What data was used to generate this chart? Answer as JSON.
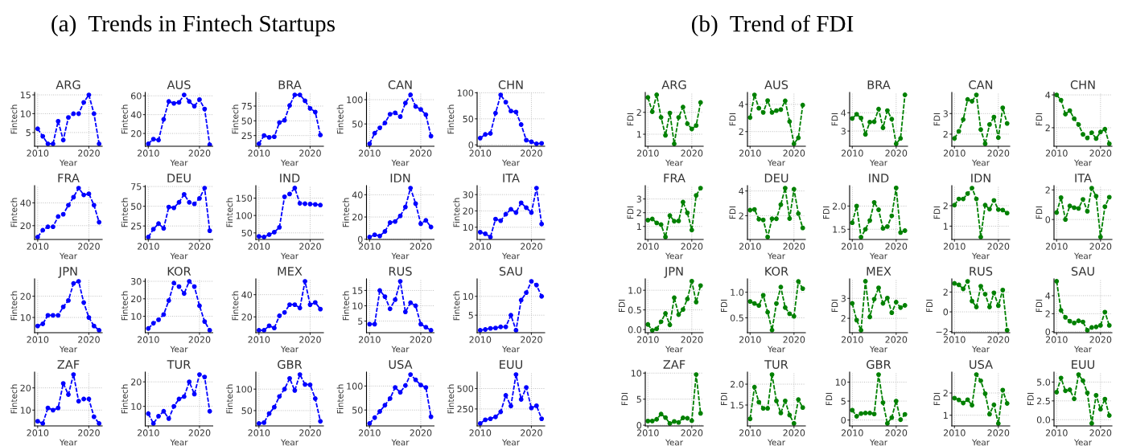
{
  "chart_data": [
    {
      "type": "line",
      "title": "ARG",
      "xlabel": "Year",
      "ylabel": "Fintech",
      "x": [
        2010,
        2011,
        2012,
        2013,
        2014,
        2015,
        2016,
        2017,
        2018,
        2019,
        2020,
        2021,
        2022
      ],
      "series": [
        {
          "color": "#0000ff",
          "values": [
            6,
            4,
            2,
            2,
            8,
            3,
            9,
            10,
            10,
            13,
            15,
            10,
            2
          ]
        }
      ],
      "xlim": [
        2009.4,
        2022.6
      ],
      "xticks": [
        2010,
        2020
      ],
      "ylim": [
        1.35,
        15.65
      ],
      "yticks": [
        5,
        10,
        15
      ],
      "grid": true,
      "marker": "circle",
      "line_style": "dashed"
    },
    {
      "type": "line",
      "subtitle": "(a)  Trends in Fintech Startups",
      "title": "AUS",
      "xlabel": "Year",
      "ylabel": "Fintech",
      "x": [
        2010,
        2011,
        2012,
        2013,
        2014,
        2015,
        2016,
        2017,
        2018,
        2019,
        2020,
        2021,
        2022
      ],
      "series": [
        {
          "color": "#0000ff",
          "values": [
            9,
            14,
            13,
            35,
            54,
            52,
            53,
            61,
            54,
            49,
            56,
            46,
            8
          ]
        }
      ],
      "xlim": [
        2009.4,
        2022.6
      ],
      "xticks": [
        2010,
        2020
      ],
      "ylim": [
        6.4,
        63.6
      ],
      "yticks": [
        20,
        40,
        60
      ],
      "grid": true,
      "marker": "circle",
      "line_style": "dashed"
    },
    {
      "type": "line",
      "title": "BRA",
      "xlabel": "Year",
      "ylabel": "Fintech",
      "x": [
        2010,
        2011,
        2012,
        2013,
        2014,
        2015,
        2016,
        2017,
        2018,
        2019,
        2020,
        2021,
        2022
      ],
      "series": [
        {
          "color": "#0000ff",
          "values": [
            11,
            25,
            22,
            23,
            47,
            51,
            76,
            94,
            94,
            84,
            71,
            65,
            26
          ]
        }
      ],
      "xlim": [
        2009.4,
        2022.6
      ],
      "xticks": [
        2010,
        2020
      ],
      "ylim": [
        6.85,
        98.15
      ],
      "yticks": [
        25,
        50,
        75
      ],
      "grid": true,
      "marker": "circle",
      "line_style": "dashed"
    },
    {
      "type": "line",
      "title": "CAN",
      "xlabel": "Year",
      "ylabel": "Fintech",
      "x": [
        2010,
        2011,
        2012,
        2013,
        2014,
        2015,
        2016,
        2017,
        2018,
        2019,
        2020,
        2021,
        2022
      ],
      "series": [
        {
          "color": "#0000ff",
          "values": [
            9,
            31,
            42,
            52,
            70,
            73,
            65,
            93,
            110,
            86,
            80,
            69,
            25
          ]
        }
      ],
      "xlim": [
        2009.4,
        2022.6
      ],
      "xticks": [
        2010,
        2020
      ],
      "ylim": [
        4,
        115
      ],
      "yticks": [
        50,
        100
      ],
      "grid": true,
      "marker": "circle",
      "line_style": "dashed"
    },
    {
      "type": "line",
      "title": "CHN",
      "xlabel": "Year",
      "ylabel": "Fintech",
      "x": [
        2010,
        2011,
        2012,
        2013,
        2014,
        2015,
        2016,
        2017,
        2018,
        2019,
        2020,
        2021,
        2022
      ],
      "series": [
        {
          "color": "#0000ff",
          "values": [
            13,
            20,
            22,
            61,
            96,
            82,
            65,
            63,
            39,
            9,
            6,
            2,
            3
          ]
        }
      ],
      "xlim": [
        2009.4,
        2022.6
      ],
      "xticks": [
        2010,
        2020
      ],
      "ylim": [
        -2.7,
        100.7
      ],
      "yticks": [
        0,
        50,
        100
      ],
      "grid": true,
      "marker": "circle",
      "line_style": "dashed"
    },
    {
      "type": "line",
      "title": "FRA",
      "xlabel": "Year",
      "ylabel": "Fintech",
      "x": [
        2010,
        2011,
        2012,
        2013,
        2014,
        2015,
        2016,
        2017,
        2018,
        2019,
        2020,
        2021,
        2022
      ],
      "series": [
        {
          "color": "#0000ff",
          "values": [
            10,
            16,
            19,
            19,
            28,
            30,
            38,
            45,
            53,
            47,
            48,
            38,
            23
          ]
        }
      ],
      "xlim": [
        2009.4,
        2022.6
      ],
      "xticks": [
        2010,
        2020
      ],
      "ylim": [
        7.85,
        55.15
      ],
      "yticks": [
        20,
        40
      ],
      "grid": true,
      "marker": "circle",
      "line_style": "dashed"
    },
    {
      "type": "line",
      "title": "DEU",
      "xlabel": "Year",
      "ylabel": "Fintech",
      "x": [
        2010,
        2011,
        2012,
        2013,
        2014,
        2015,
        2016,
        2017,
        2018,
        2019,
        2020,
        2021,
        2022
      ],
      "series": [
        {
          "color": "#0000ff",
          "values": [
            11,
            21,
            28,
            22,
            49,
            48,
            55,
            65,
            55,
            53,
            60,
            73,
            19
          ]
        }
      ],
      "xlim": [
        2009.4,
        2022.6
      ],
      "xticks": [
        2010,
        2020
      ],
      "ylim": [
        7.9,
        76.1
      ],
      "yticks": [
        25,
        50,
        75
      ],
      "grid": true,
      "marker": "circle",
      "line_style": "dashed"
    },
    {
      "type": "line",
      "title": "IND",
      "xlabel": "Year",
      "ylabel": "Fintech",
      "x": [
        2010,
        2011,
        2012,
        2013,
        2014,
        2015,
        2016,
        2017,
        2018,
        2019,
        2020,
        2021,
        2022
      ],
      "series": [
        {
          "color": "#0000ff",
          "values": [
            40,
            38,
            45,
            52,
            66,
            154,
            162,
            179,
            135,
            134,
            133,
            132,
            130
          ]
        }
      ],
      "xlim": [
        2009.4,
        2022.6
      ],
      "xticks": [
        2010,
        2020
      ],
      "ylim": [
        31,
        186
      ],
      "yticks": [
        50,
        100,
        150
      ],
      "grid": true,
      "marker": "circle",
      "line_style": "dashed"
    },
    {
      "type": "line",
      "title": "IDN",
      "xlabel": "Year",
      "ylabel": "Fintech",
      "x": [
        2010,
        2011,
        2012,
        2013,
        2014,
        2015,
        2016,
        2017,
        2018,
        2019,
        2020,
        2021,
        2022
      ],
      "series": [
        {
          "color": "#0000ff",
          "values": [
            2,
            4,
            3,
            7,
            15,
            16,
            21,
            29,
            46,
            32,
            14,
            17,
            11
          ]
        }
      ],
      "xlim": [
        2009.4,
        2022.6
      ],
      "xticks": [
        2010,
        2020
      ],
      "ylim": [
        -0.2,
        48.2
      ],
      "yticks": [
        0,
        20,
        40
      ],
      "grid": true,
      "marker": "circle",
      "line_style": "dashed"
    },
    {
      "type": "line",
      "title": "ITA",
      "xlabel": "Year",
      "ylabel": "Fintech",
      "x": [
        2010,
        2011,
        2012,
        2013,
        2014,
        2015,
        2016,
        2017,
        2018,
        2019,
        2020,
        2021,
        2022
      ],
      "series": [
        {
          "color": "#0000ff",
          "values": [
            7,
            6,
            4,
            15,
            14,
            18,
            21,
            19,
            25,
            22,
            19,
            34,
            12
          ]
        }
      ],
      "xlim": [
        2009.4,
        2022.6
      ],
      "xticks": [
        2010,
        2020
      ],
      "ylim": [
        2.5,
        35.5
      ],
      "yticks": [
        10,
        20,
        30
      ],
      "grid": true,
      "marker": "circle",
      "line_style": "dashed"
    },
    {
      "type": "line",
      "title": "JPN",
      "xlabel": "Year",
      "ylabel": "Fintech",
      "x": [
        2010,
        2011,
        2012,
        2013,
        2014,
        2015,
        2016,
        2017,
        2018,
        2019,
        2020,
        2021,
        2022
      ],
      "series": [
        {
          "color": "#0000ff",
          "values": [
            6,
            7,
            11,
            11,
            11,
            15,
            18,
            26,
            27,
            17,
            10,
            6,
            4
          ]
        }
      ],
      "xlim": [
        2009.4,
        2022.6
      ],
      "xticks": [
        2010,
        2020
      ],
      "ylim": [
        2.85,
        28.15
      ],
      "yticks": [
        10,
        20
      ],
      "grid": true,
      "marker": "circle",
      "line_style": "dashed"
    },
    {
      "type": "line",
      "title": "KOR",
      "xlabel": "Year",
      "ylabel": "Fintech",
      "x": [
        2010,
        2011,
        2012,
        2013,
        2014,
        2015,
        2016,
        2017,
        2018,
        2019,
        2020,
        2021,
        2022
      ],
      "series": [
        {
          "color": "#0000ff",
          "values": [
            3,
            6,
            8,
            11,
            19,
            29,
            27,
            23,
            30,
            27,
            16,
            7,
            2
          ]
        }
      ],
      "xlim": [
        2009.4,
        2022.6
      ],
      "xticks": [
        2010,
        2020
      ],
      "ylim": [
        0.6,
        31.4
      ],
      "yticks": [
        10,
        20,
        30
      ],
      "grid": true,
      "marker": "circle",
      "line_style": "dashed"
    },
    {
      "type": "line",
      "title": "MEX",
      "xlabel": "Year",
      "ylabel": "Fintech",
      "x": [
        2010,
        2011,
        2012,
        2013,
        2014,
        2015,
        2016,
        2017,
        2018,
        2019,
        2020,
        2021,
        2022
      ],
      "series": [
        {
          "color": "#0000ff",
          "values": [
            8,
            8,
            12,
            10,
            21,
            24,
            31,
            31,
            28,
            52,
            31,
            33,
            27
          ]
        }
      ],
      "xlim": [
        2009.4,
        2022.6
      ],
      "xticks": [
        2010,
        2020
      ],
      "ylim": [
        5.8,
        54.2
      ],
      "yticks": [
        20,
        40
      ],
      "grid": true,
      "marker": "circle",
      "line_style": "dashed"
    },
    {
      "type": "line",
      "title": "RUS",
      "xlabel": "Year",
      "ylabel": "Fintech",
      "x": [
        2010,
        2011,
        2012,
        2013,
        2014,
        2015,
        2016,
        2017,
        2018,
        2019,
        2020,
        2021,
        2022
      ],
      "series": [
        {
          "color": "#0000ff",
          "values": [
            4,
            4,
            15,
            13,
            9,
            12,
            18,
            8,
            11,
            10,
            4,
            3,
            2
          ]
        }
      ],
      "xlim": [
        2009.4,
        2022.6
      ],
      "xticks": [
        2010,
        2020
      ],
      "ylim": [
        1.2,
        18.8
      ],
      "yticks": [
        5,
        10,
        15
      ],
      "grid": true,
      "marker": "circle",
      "line_style": "dashed"
    },
    {
      "type": "line",
      "title": "SAU",
      "xlabel": "Year",
      "ylabel": "Fintech",
      "x": [
        2010,
        2011,
        2012,
        2013,
        2014,
        2015,
        2016,
        2017,
        2018,
        2019,
        2020,
        2021,
        2022
      ],
      "series": [
        {
          "color": "#0000ff",
          "values": [
            1,
            1.2,
            1.5,
            1.6,
            1.9,
            1.9,
            5,
            1,
            9,
            11,
            14,
            13,
            10
          ]
        }
      ],
      "xlim": [
        2009.4,
        2022.6
      ],
      "xticks": [
        2010,
        2020
      ],
      "ylim": [
        0.35,
        14.65
      ],
      "yticks": [
        5,
        10
      ],
      "grid": true,
      "marker": "circle",
      "line_style": "dashed"
    },
    {
      "type": "line",
      "title": "ZAF",
      "xlabel": "Year",
      "ylabel": "Fintech",
      "x": [
        2010,
        2011,
        2012,
        2013,
        2014,
        2015,
        2016,
        2017,
        2018,
        2019,
        2020,
        2021,
        2022
      ],
      "series": [
        {
          "color": "#0000ff",
          "values": [
            5,
            4,
            11,
            10,
            11,
            22,
            17,
            26,
            14,
            15,
            15,
            7,
            4
          ]
        }
      ],
      "xlim": [
        2009.4,
        2022.6
      ],
      "xticks": [
        2010,
        2020
      ],
      "ylim": [
        2.9,
        27.1
      ],
      "yticks": [
        10,
        20
      ],
      "grid": true,
      "marker": "circle",
      "line_style": "dashed"
    },
    {
      "type": "line",
      "title": "TUR",
      "xlabel": "Year",
      "ylabel": "Fintech",
      "x": [
        2010,
        2011,
        2012,
        2013,
        2014,
        2015,
        2016,
        2017,
        2018,
        2019,
        2020,
        2021,
        2022
      ],
      "series": [
        {
          "color": "#0000ff",
          "values": [
            7,
            3,
            6,
            8,
            5,
            10,
            13,
            14,
            20,
            15,
            23,
            22,
            8
          ]
        }
      ],
      "xlim": [
        2009.4,
        2022.6
      ],
      "xticks": [
        2010,
        2020
      ],
      "ylim": [
        2,
        24
      ],
      "yticks": [
        10,
        20
      ],
      "grid": true,
      "marker": "circle",
      "line_style": "dashed"
    },
    {
      "type": "line",
      "title": "GBR",
      "xlabel": "Year",
      "ylabel": "Fintech",
      "x": [
        2010,
        2011,
        2012,
        2013,
        2014,
        2015,
        2016,
        2017,
        2018,
        2019,
        2020,
        2021,
        2022
      ],
      "series": [
        {
          "color": "#0000ff",
          "values": [
            20,
            22,
            43,
            58,
            83,
            100,
            125,
            97,
            134,
            111,
            110,
            78,
            25
          ]
        }
      ],
      "xlim": [
        2009.4,
        2022.6
      ],
      "xticks": [
        2010,
        2020
      ],
      "ylim": [
        14.3,
        139.7
      ],
      "yticks": [
        50,
        100
      ],
      "grid": true,
      "marker": "circle",
      "line_style": "dashed"
    },
    {
      "type": "line",
      "title": "USA",
      "xlabel": "Year",
      "ylabel": "Fintech",
      "x": [
        2010,
        2011,
        2012,
        2013,
        2014,
        2015,
        2016,
        2017,
        2018,
        2019,
        2020,
        2021,
        2022
      ],
      "series": [
        {
          "color": "#0000ff",
          "values": [
            22,
            34,
            47,
            60,
            74,
            97,
            87,
            101,
            124,
            113,
            102,
            97,
            36
          ]
        }
      ],
      "xlim": [
        2009.4,
        2022.6
      ],
      "xticks": [
        2010,
        2020
      ],
      "ylim": [
        16.9,
        129.1
      ],
      "yticks": [
        50,
        100
      ],
      "grid": true,
      "marker": "circle",
      "line_style": "dashed"
    },
    {
      "type": "line",
      "title": "EUU",
      "xlabel": "Year",
      "ylabel": "Fintech",
      "x": [
        2010,
        2011,
        2012,
        2013,
        2014,
        2015,
        2016,
        2017,
        2018,
        2019,
        2020,
        2021,
        2022
      ],
      "series": [
        {
          "color": "#0000ff",
          "values": [
            72,
            117,
            130,
            153,
            214,
            416,
            286,
            672,
            367,
            513,
            263,
            289,
            130
          ]
        }
      ],
      "xlim": [
        2009.4,
        2022.6
      ],
      "xticks": [
        2010,
        2020
      ],
      "ylim": [
        42,
        702
      ],
      "yticks": [
        250,
        500
      ],
      "grid": true,
      "marker": "circle",
      "line_style": "dashed"
    },
    {
      "type": "line",
      "title": "ARG",
      "xlabel": "Year",
      "ylabel": "FDI",
      "x": [
        2010,
        2011,
        2012,
        2013,
        2014,
        2015,
        2016,
        2017,
        2018,
        2019,
        2020,
        2021,
        2022
      ],
      "series": [
        {
          "color": "#008000",
          "values": [
            2.68,
            2.03,
            2.8,
            1.77,
            0.95,
            1.97,
            0.56,
            1.77,
            2.24,
            1.48,
            1.24,
            1.4,
            2.45
          ]
        }
      ],
      "xlim": [
        2009.4,
        2022.6
      ],
      "xticks": [
        2010,
        2020
      ],
      "ylim": [
        0.45,
        2.91
      ],
      "yticks": [
        1,
        2
      ],
      "grid": true,
      "marker": "circle",
      "line_style": "dashed"
    },
    {
      "type": "line",
      "subtitle": "(b)  Trend of FDI",
      "title": "AUS",
      "xlabel": "Year",
      "ylabel": "FDI",
      "x": [
        2010,
        2011,
        2012,
        2013,
        2014,
        2015,
        2016,
        2017,
        2018,
        2019,
        2020,
        2021,
        2022
      ],
      "series": [
        {
          "color": "#008000",
          "values": [
            3.03,
            4.7,
            3.72,
            3.41,
            4.28,
            3.41,
            3.54,
            3.62,
            4.26,
            2.74,
            1.1,
            1.54,
            3.95
          ]
        }
      ],
      "xlim": [
        2009.4,
        2022.6
      ],
      "xticks": [
        2010,
        2020
      ],
      "ylim": [
        0.92,
        4.88
      ],
      "yticks": [
        2,
        4
      ],
      "grid": true,
      "marker": "circle",
      "line_style": "dashed"
    },
    {
      "type": "line",
      "title": "BRA",
      "xlabel": "Year",
      "ylabel": "FDI",
      "x": [
        2010,
        2011,
        2012,
        2013,
        2014,
        2015,
        2016,
        2017,
        2018,
        2019,
        2020,
        2021,
        2022
      ],
      "series": [
        {
          "color": "#008000",
          "values": [
            3.69,
            3.92,
            3.71,
            2.82,
            3.49,
            3.51,
            4.2,
            3.18,
            4.12,
            3.65,
            2.3,
            2.6,
            4.98
          ]
        }
      ],
      "xlim": [
        2009.4,
        2022.6
      ],
      "xticks": [
        2010,
        2020
      ],
      "ylim": [
        2.17,
        5.11
      ],
      "yticks": [
        3,
        4
      ],
      "grid": true,
      "marker": "circle",
      "line_style": "dashed"
    },
    {
      "type": "line",
      "title": "CAN",
      "xlabel": "Year",
      "ylabel": "FDI",
      "x": [
        2010,
        2011,
        2012,
        2013,
        2014,
        2015,
        2016,
        2017,
        2018,
        2019,
        2020,
        2021,
        2022
      ],
      "series": [
        {
          "color": "#008000",
          "values": [
            1.79,
            2.14,
            2.71,
            3.69,
            3.6,
            3.91,
            2.22,
            1.53,
            2.47,
            2.83,
            1.83,
            3.28,
            2.52
          ]
        }
      ],
      "xlim": [
        2009.4,
        2022.6
      ],
      "xticks": [
        2010,
        2020
      ],
      "ylim": [
        1.41,
        4.03
      ],
      "yticks": [
        2,
        3
      ],
      "grid": true,
      "marker": "circle",
      "line_style": "dashed"
    },
    {
      "type": "line",
      "title": "CHN",
      "xlabel": "Year",
      "ylabel": "FDI",
      "x": [
        2010,
        2011,
        2012,
        2013,
        2014,
        2015,
        2016,
        2017,
        2018,
        2019,
        2020,
        2021,
        2022
      ],
      "series": [
        {
          "color": "#008000",
          "values": [
            4.0,
            3.68,
            2.83,
            3.04,
            2.55,
            2.19,
            1.6,
            1.38,
            1.7,
            1.34,
            1.74,
            1.91,
            1.02
          ]
        }
      ],
      "xlim": [
        2009.4,
        2022.6
      ],
      "xticks": [
        2010,
        2020
      ],
      "ylim": [
        0.87,
        4.15
      ],
      "yticks": [
        2,
        4
      ],
      "grid": true,
      "marker": "circle",
      "line_style": "dashed"
    },
    {
      "type": "line",
      "title": "FRA",
      "xlabel": "Year",
      "ylabel": "FDI",
      "x": [
        2010,
        2011,
        2012,
        2013,
        2014,
        2015,
        2016,
        2017,
        2018,
        2019,
        2020,
        2021,
        2022
      ],
      "series": [
        {
          "color": "#008000",
          "values": [
            1.46,
            1.54,
            1.26,
            1.13,
            0.23,
            1.79,
            1.38,
            1.4,
            2.77,
            1.99,
            0.74,
            3.26,
            3.79
          ]
        }
      ],
      "xlim": [
        2009.4,
        2022.6
      ],
      "xticks": [
        2010,
        2020
      ],
      "ylim": [
        0.05,
        3.97
      ],
      "yticks": [
        1,
        2,
        3
      ],
      "grid": true,
      "marker": "circle",
      "line_style": "dashed"
    },
    {
      "type": "line",
      "title": "DEU",
      "xlabel": "Year",
      "ylabel": "FDI",
      "x": [
        2010,
        2011,
        2012,
        2013,
        2014,
        2015,
        2016,
        2017,
        2018,
        2019,
        2020,
        2021,
        2022
      ],
      "series": [
        {
          "color": "#008000",
          "values": [
            2.45,
            2.51,
            1.72,
            1.66,
            0.28,
            1.75,
            1.75,
            2.9,
            4.23,
            1.77,
            4.14,
            2.17,
            1.01
          ]
        }
      ],
      "xlim": [
        2009.4,
        2022.6
      ],
      "xticks": [
        2010,
        2020
      ],
      "ylim": [
        0.08,
        4.43
      ],
      "yticks": [
        2,
        4
      ],
      "grid": true,
      "marker": "circle",
      "line_style": "dashed"
    },
    {
      "type": "line",
      "title": "IND",
      "xlabel": "Year",
      "ylabel": "FDI",
      "x": [
        2010,
        2011,
        2012,
        2013,
        2014,
        2015,
        2016,
        2017,
        2018,
        2019,
        2020,
        2021,
        2022
      ],
      "series": [
        {
          "color": "#008000",
          "values": [
            1.64,
            2.0,
            1.33,
            1.5,
            1.69,
            2.08,
            1.92,
            1.52,
            1.56,
            1.79,
            2.39,
            1.43,
            1.47
          ]
        }
      ],
      "xlim": [
        2009.4,
        2022.6
      ],
      "xticks": [
        2010,
        2020
      ],
      "ylim": [
        1.28,
        2.44
      ],
      "yticks": [
        1.5,
        {
          "value": 2,
          "label": "2.0"
        }
      ],
      "grid": true,
      "marker": "circle",
      "line_style": "dashed"
    },
    {
      "type": "line",
      "title": "IDN",
      "xlabel": "Year",
      "ylabel": "FDI",
      "x": [
        2010,
        2011,
        2012,
        2013,
        2014,
        2015,
        2016,
        2017,
        2018,
        2019,
        2020,
        2021,
        2022
      ],
      "series": [
        {
          "color": "#008000",
          "values": [
            2.03,
            2.33,
            2.33,
            2.59,
            2.86,
            2.33,
            0.47,
            2.03,
            1.83,
            2.26,
            1.81,
            1.79,
            1.64
          ]
        }
      ],
      "xlim": [
        2009.4,
        2022.6
      ],
      "xticks": [
        2010,
        2020
      ],
      "ylim": [
        0.35,
        2.98
      ],
      "yticks": [
        1,
        2
      ],
      "grid": true,
      "marker": "circle",
      "line_style": "dashed"
    },
    {
      "type": "line",
      "title": "ITA",
      "xlabel": "Year",
      "ylabel": "FDI",
      "x": [
        2010,
        2011,
        2012,
        2013,
        2014,
        2015,
        2016,
        2017,
        2018,
        2019,
        2020,
        2021,
        2022
      ],
      "series": [
        {
          "color": "#008000",
          "values": [
            0.47,
            1.48,
            0.0,
            0.92,
            0.8,
            0.75,
            1.36,
            0.56,
            2.12,
            1.58,
            -1.18,
            0.87,
            1.51
          ]
        }
      ],
      "xlim": [
        2009.4,
        2022.6
      ],
      "xticks": [
        2010,
        2020
      ],
      "ylim": [
        -1.35,
        2.29
      ],
      "yticks": [
        0,
        2
      ],
      "grid": true,
      "marker": "circle",
      "line_style": "dashed"
    },
    {
      "type": "line",
      "title": "JPN",
      "xlabel": "Year",
      "ylabel": "FDI",
      "x": [
        2010,
        2011,
        2012,
        2013,
        2014,
        2015,
        2016,
        2017,
        2018,
        2019,
        2020,
        2021,
        2022
      ],
      "series": [
        {
          "color": "#008000",
          "values": [
            0.13,
            -0.02,
            0.02,
            0.2,
            0.41,
            0.12,
            0.81,
            0.38,
            0.51,
            0.78,
            1.23,
            0.7,
            1.12
          ]
        }
      ],
      "xlim": [
        2009.4,
        2022.6
      ],
      "xticks": [
        2010,
        2020
      ],
      "ylim": [
        -0.08,
        1.29
      ],
      "yticks": [
        {
          "value": 0,
          "label": "0.0"
        },
        0.5,
        {
          "value": 1,
          "label": "1.0"
        }
      ],
      "grid": true,
      "marker": "circle",
      "line_style": "dashed"
    },
    {
      "type": "line",
      "title": "KOR",
      "xlabel": "Year",
      "ylabel": "FDI",
      "x": [
        2010,
        2011,
        2012,
        2013,
        2014,
        2015,
        2016,
        2017,
        2018,
        2019,
        2020,
        2021,
        2022
      ],
      "series": [
        {
          "color": "#008000",
          "values": [
            0.82,
            0.78,
            0.74,
            0.94,
            0.61,
            0.26,
            0.78,
            1.1,
            0.7,
            0.58,
            0.53,
            1.21,
            1.07
          ]
        }
      ],
      "xlim": [
        2009.4,
        2022.6
      ],
      "xticks": [
        2010,
        2020
      ],
      "ylim": [
        0.21,
        1.26
      ],
      "yticks": [
        0.5,
        {
          "value": 1,
          "label": "1.0"
        }
      ],
      "grid": true,
      "marker": "circle",
      "line_style": "dashed"
    },
    {
      "type": "line",
      "title": "MEX",
      "xlabel": "Year",
      "ylabel": "FDI",
      "x": [
        2010,
        2011,
        2012,
        2013,
        2014,
        2015,
        2016,
        2017,
        2018,
        2019,
        2020,
        2021,
        2022
      ],
      "series": [
        {
          "color": "#008000",
          "values": [
            2.75,
            1.91,
            1.4,
            3.86,
            2.07,
            2.96,
            3.53,
            2.75,
            3.02,
            2.28,
            2.81,
            2.54,
            2.65
          ]
        }
      ],
      "xlim": [
        2009.4,
        2022.6
      ],
      "xticks": [
        2010,
        2020
      ],
      "ylim": [
        1.28,
        3.98
      ],
      "yticks": [
        2,
        3
      ],
      "grid": true,
      "marker": "circle",
      "line_style": "dashed"
    },
    {
      "type": "line",
      "title": "RUS",
      "xlabel": "Year",
      "ylabel": "FDI",
      "x": [
        2010,
        2011,
        2012,
        2013,
        2014,
        2015,
        2016,
        2017,
        2018,
        2019,
        2020,
        2021,
        2022
      ],
      "series": [
        {
          "color": "#008000",
          "values": [
            2.88,
            2.74,
            2.32,
            3.09,
            1.09,
            0.49,
            2.6,
            1.79,
            0.49,
            1.93,
            0.63,
            2.21,
            -1.86
          ]
        }
      ],
      "xlim": [
        2009.4,
        2022.6
      ],
      "xticks": [
        2010,
        2020
      ],
      "ylim": [
        -2.11,
        3.34
      ],
      "yticks": [
        {
          "value": -2,
          "label": "−2"
        },
        0,
        2
      ],
      "grid": true,
      "marker": "circle",
      "line_style": "dashed"
    },
    {
      "type": "line",
      "title": "SAU",
      "xlabel": "Year",
      "ylabel": "FDI",
      "x": [
        2010,
        2011,
        2012,
        2013,
        2014,
        2015,
        2016,
        2017,
        2018,
        2019,
        2020,
        2021,
        2022
      ],
      "series": [
        {
          "color": "#008000",
          "values": [
            5.6,
            2.37,
            1.6,
            1.17,
            0.97,
            1.21,
            1.09,
            0.16,
            0.47,
            0.54,
            0.7,
            2.18,
            0.7
          ]
        }
      ],
      "xlim": [
        2009.4,
        2022.6
      ],
      "xticks": [
        2010,
        2020
      ],
      "ylim": [
        -0.11,
        5.87
      ],
      "yticks": [
        0,
        2,
        4
      ],
      "grid": true,
      "marker": "circle",
      "line_style": "dashed"
    },
    {
      "type": "line",
      "title": "ZAF",
      "xlabel": "Year",
      "ylabel": "FDI",
      "x": [
        2010,
        2011,
        2012,
        2013,
        2014,
        2015,
        2016,
        2017,
        2018,
        2019,
        2020,
        2021,
        2022
      ],
      "series": [
        {
          "color": "#008000",
          "values": [
            0.8,
            0.8,
            1.13,
            2.13,
            1.47,
            0.33,
            0.73,
            0.53,
            1.4,
            1.33,
            0.87,
            9.73,
            2.27
          ]
        }
      ],
      "xlim": [
        2009.4,
        2022.6
      ],
      "xticks": [
        2010,
        2020
      ],
      "ylim": [
        -0.14,
        10.2
      ],
      "yticks": [
        0,
        5,
        10
      ],
      "grid": true,
      "marker": "circle",
      "line_style": "dashed"
    },
    {
      "type": "line",
      "title": "TUR",
      "xlabel": "Year",
      "ylabel": "FDI",
      "x": [
        2010,
        2011,
        2012,
        2013,
        2014,
        2015,
        2016,
        2017,
        2018,
        2019,
        2020,
        2021,
        2022
      ],
      "series": [
        {
          "color": "#008000",
          "values": [
            1.17,
            1.93,
            1.57,
            1.42,
            1.42,
            2.23,
            1.6,
            1.31,
            1.6,
            1.26,
            1.06,
            1.63,
            1.44
          ]
        }
      ],
      "xlim": [
        2009.4,
        2022.6
      ],
      "xticks": [
        2010,
        2020
      ],
      "ylim": [
        1.0,
        2.29
      ],
      "yticks": [
        1.5,
        {
          "value": 2,
          "label": "2.0"
        }
      ],
      "grid": true,
      "marker": "circle",
      "line_style": "dashed"
    },
    {
      "type": "line",
      "title": "GBR",
      "xlabel": "Year",
      "ylabel": "FDI",
      "x": [
        2010,
        2011,
        2012,
        2013,
        2014,
        2015,
        2016,
        2017,
        2018,
        2019,
        2020,
        2021,
        2022
      ],
      "series": [
        {
          "color": "#008000",
          "values": [
            2.6,
            1.0,
            1.7,
            1.85,
            1.85,
            1.6,
            12.0,
            4.6,
            -0.9,
            0.65,
            5.0,
            0.1,
            1.5
          ]
        }
      ],
      "xlim": [
        2009.4,
        2022.6
      ],
      "xticks": [
        2010,
        2020
      ],
      "ylim": [
        -1.55,
        12.65
      ],
      "yticks": [
        0,
        5,
        10
      ],
      "grid": true,
      "marker": "circle",
      "line_style": "dashed"
    },
    {
      "type": "line",
      "title": "USA",
      "xlabel": "Year",
      "ylabel": "FDI",
      "x": [
        2010,
        2011,
        2012,
        2013,
        2014,
        2015,
        2016,
        2017,
        2018,
        2019,
        2020,
        2021,
        2022
      ],
      "series": [
        {
          "color": "#008000",
          "values": [
            1.77,
            1.69,
            1.55,
            1.7,
            1.45,
            2.83,
            2.55,
            1.97,
            1.05,
            1.47,
            0.63,
            2.13,
            1.53
          ]
        }
      ],
      "xlim": [
        2009.4,
        2022.6
      ],
      "xticks": [
        2010,
        2020
      ],
      "ylim": [
        0.52,
        2.94
      ],
      "yticks": [
        1,
        2
      ],
      "grid": true,
      "marker": "circle",
      "line_style": "dashed"
    },
    {
      "type": "line",
      "title": "EUU",
      "xlabel": "Year",
      "ylabel": "FDI",
      "x": [
        2010,
        2011,
        2012,
        2013,
        2014,
        2015,
        2016,
        2017,
        2018,
        2019,
        2020,
        2021,
        2022
      ],
      "series": [
        {
          "color": "#008000",
          "values": [
            3.66,
            5.55,
            3.84,
            3.98,
            2.78,
            6.0,
            5.18,
            3.56,
            -0.5,
            3.24,
            1.39,
            2.73,
            0.56
          ]
        }
      ],
      "xlim": [
        2009.4,
        2022.6
      ],
      "xticks": [
        2010,
        2020
      ],
      "ylim": [
        -0.83,
        6.33
      ],
      "yticks": [
        {
          "value": 0,
          "label": "0.0"
        },
        2.5,
        {
          "value": 5,
          "label": "5.0"
        }
      ],
      "grid": true,
      "marker": "circle",
      "line_style": "dashed"
    }
  ]
}
